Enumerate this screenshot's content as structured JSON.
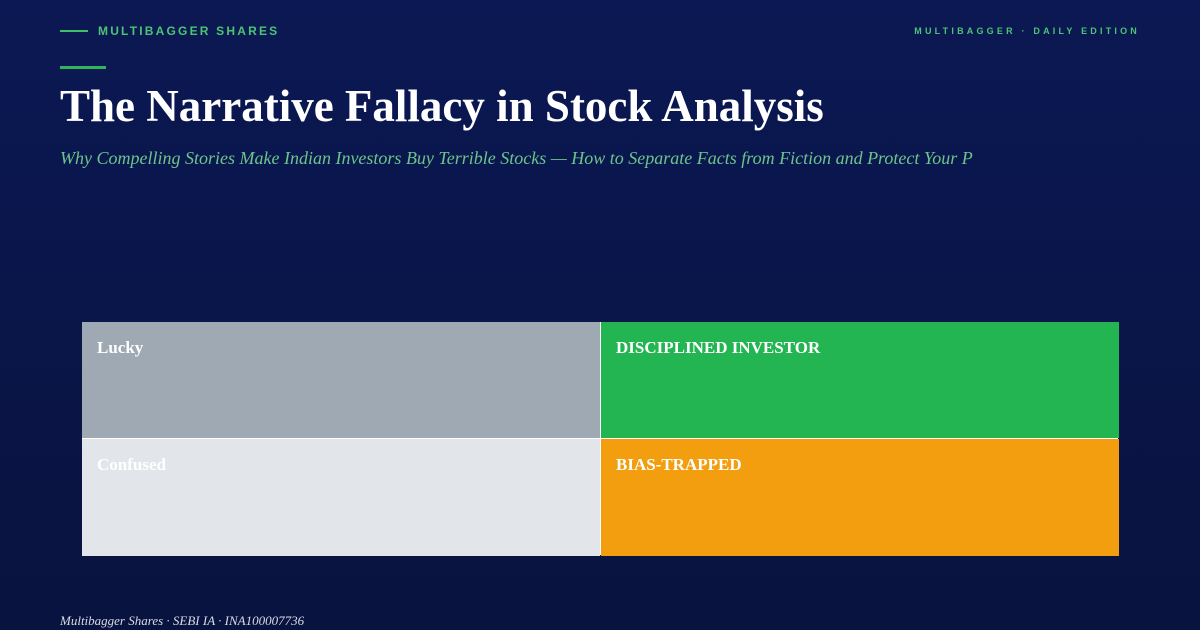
{
  "header": {
    "brand": "MULTIBAGGER SHARES",
    "edition": "MULTIBAGGER · DAILY EDITION"
  },
  "title": "The Narrative Fallacy in Stock Analysis",
  "subtitle": "Why Compelling Stories Make Indian Investors Buy Terrible Stocks — How to Separate Facts from Fiction and Protect Your P",
  "quadrants": [
    {
      "label": "Lucky",
      "color": "#9ea9b3"
    },
    {
      "label": "DISCIPLINED INVESTOR",
      "color": "#22b551"
    },
    {
      "label": "Confused",
      "color": "#e2e6eb"
    },
    {
      "label": "BIAS-TRAPPED",
      "color": "#f29e0f"
    }
  ],
  "footer": "Multibagger Shares · SEBI IA · INA100007736"
}
